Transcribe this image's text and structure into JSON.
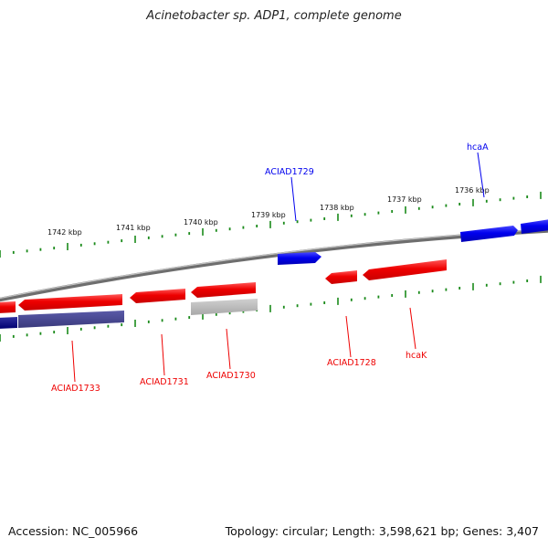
{
  "title": "Acinetobacter sp. ADP1, complete genome",
  "accession_text": "Accession: NC_005966",
  "topology_text": "Topology: circular; Length: 3,598,621 bp; Genes: 3,407",
  "colors": {
    "forward_gene": "#0000ee",
    "reverse_gene": "#ee0000",
    "selected_gene": "#3c3c8c",
    "other_track": "#b4b4b4",
    "tick": "#1a8a1a",
    "backbone": "#8c8c8c"
  },
  "ruler_labels": [
    "1742 kbp",
    "1741 kbp",
    "1740 kbp",
    "1739 kbp",
    "1738 kbp",
    "1737 kbp",
    "1736 kbp"
  ],
  "gene_labels": [
    {
      "text": "ACIAD1729",
      "strand": "forward"
    },
    {
      "text": "hcaA",
      "strand": "forward"
    },
    {
      "text": "ACIAD1733",
      "strand": "reverse"
    },
    {
      "text": "ACIAD1731",
      "strand": "reverse"
    },
    {
      "text": "ACIAD1730",
      "strand": "reverse"
    },
    {
      "text": "ACIAD1728",
      "strand": "reverse"
    },
    {
      "text": "hcaK",
      "strand": "reverse"
    }
  ]
}
